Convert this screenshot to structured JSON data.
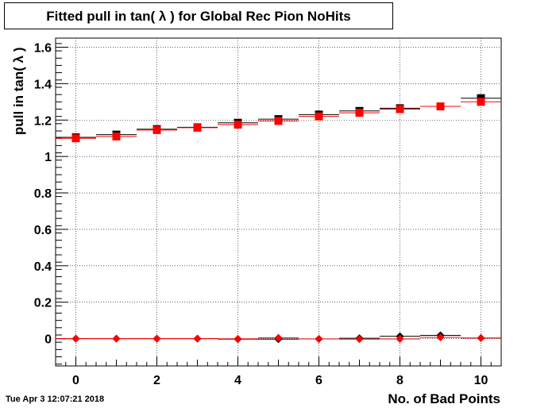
{
  "chart_data": {
    "type": "scatter",
    "title": "Fitted pull in tan( λ ) for Global Rec Pion NoHits",
    "xlabel": "No. of Bad Points",
    "ylabel": "pull in tan( λ )",
    "xlim": [
      -0.5,
      10.5
    ],
    "ylim": [
      -0.15,
      1.65
    ],
    "grid": true,
    "x_ticks": [
      0,
      2,
      4,
      6,
      8,
      10
    ],
    "y_ticks": [
      0,
      0.2,
      0.4,
      0.6,
      0.8,
      1,
      1.2,
      1.4,
      1.6
    ],
    "x_tick_labels": [
      "0",
      "2",
      "4",
      "6",
      "8",
      "10"
    ],
    "y_tick_labels": [
      "0",
      "0.2",
      "0.4",
      "0.6",
      "0.8",
      "1",
      "1.2",
      "1.4",
      "1.6"
    ],
    "series": [
      {
        "marker": "square",
        "color": "#000000",
        "x": [
          0,
          1,
          2,
          3,
          4,
          5,
          6,
          7,
          8,
          9,
          10
        ],
        "values": [
          1.105,
          1.12,
          1.15,
          1.16,
          1.185,
          1.205,
          1.23,
          1.25,
          1.265,
          1.275,
          1.32
        ]
      },
      {
        "marker": "square",
        "color": "#ff0000",
        "x": [
          0,
          1,
          2,
          3,
          4,
          5,
          6,
          7,
          8,
          9,
          10
        ],
        "values": [
          1.1,
          1.11,
          1.145,
          1.158,
          1.175,
          1.195,
          1.22,
          1.24,
          1.26,
          1.275,
          1.3
        ]
      },
      {
        "marker": "diamond",
        "color": "#000000",
        "x": [
          0,
          1,
          2,
          3,
          4,
          5,
          6,
          7,
          8,
          9,
          10
        ],
        "values": [
          0.0,
          0.0,
          0.0,
          0.0,
          -0.003,
          -0.003,
          -0.002,
          0.002,
          0.013,
          0.018,
          0.003
        ]
      },
      {
        "marker": "diamond",
        "color": "#ff0000",
        "x": [
          0,
          1,
          2,
          3,
          4,
          5,
          6,
          7,
          8,
          9,
          10
        ],
        "values": [
          0.0,
          0.0,
          0.0,
          0.0,
          -0.001,
          0.004,
          -0.002,
          -0.003,
          -0.002,
          0.007,
          0.003
        ]
      }
    ]
  },
  "timestamp": "Tue Apr  3 12:07:21 2018"
}
